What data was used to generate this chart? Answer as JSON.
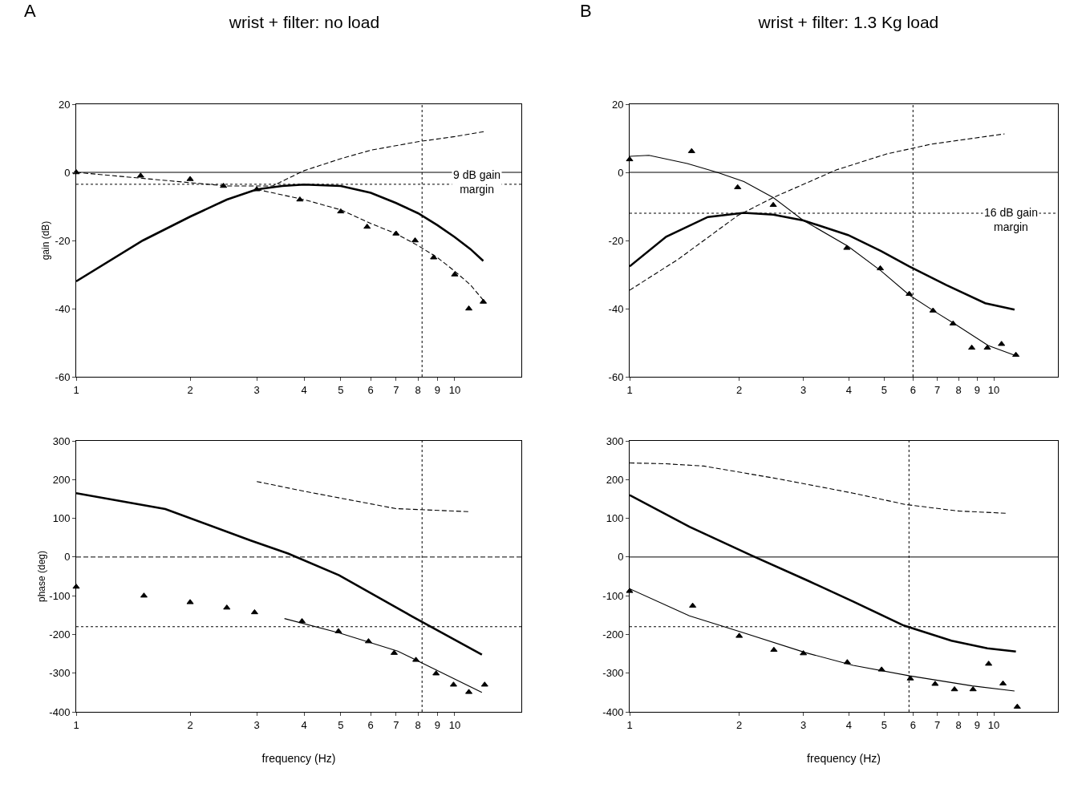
{
  "chart_data": [
    {
      "type": "line",
      "title": "wrist + filter: no load",
      "ylabel": "gain (dB)",
      "log": "x",
      "xlim": [
        1,
        15
      ],
      "xticks": [
        1,
        2,
        3,
        4,
        5,
        6,
        7,
        8,
        9,
        10
      ],
      "ylim": [
        -60,
        20
      ],
      "yticks": [
        -60,
        -40,
        -20,
        0,
        20
      ],
      "grid": false,
      "series": [
        {
          "color": "#000000",
          "line_style": "solid",
          "x": [
            1,
            1.5,
            2,
            2.5,
            3,
            3.5,
            4,
            5,
            6,
            7,
            8,
            9,
            10,
            11,
            11.9
          ],
          "values": [
            -32,
            -20,
            -13,
            -8,
            -5,
            -4,
            -3.6,
            -4,
            -6,
            -9,
            -12,
            -15.5,
            -19,
            -22.5,
            -26
          ]
        },
        {
          "color": "#000000",
          "line_style": "dashed",
          "x": [
            3,
            4,
            5,
            6,
            7,
            8,
            9,
            10,
            11,
            12
          ],
          "values": [
            -5,
            -8,
            -11,
            -15,
            -18,
            -21.5,
            -25,
            -29,
            -33,
            -38
          ]
        },
        {
          "type": "scatter",
          "marker": "triangle",
          "color": "#000000",
          "x": [
            1,
            1.48,
            2,
            2.45,
            3,
            3.9,
            5,
            5.87,
            7,
            7.86,
            8.8,
            10,
            10.9,
            11.9
          ],
          "values": [
            0,
            -1,
            -2,
            -4,
            -5,
            -8,
            -11.5,
            -16,
            -18,
            -20,
            -25,
            -30,
            -40,
            -38
          ]
        },
        {
          "color": "#000000",
          "line_style": "dashed",
          "x": [
            1,
            2.5,
            3.3,
            4,
            5,
            6,
            8,
            10,
            12
          ],
          "values": [
            0,
            -4,
            -4,
            0.5,
            4,
            6.5,
            9,
            10.5,
            12
          ]
        }
      ],
      "ref_lines": [
        {
          "axis": "y",
          "value": 0,
          "color": "#000000",
          "line_style": "solid"
        },
        {
          "axis": "y",
          "value": -3.5,
          "color": "#000000",
          "line_style": "dotted"
        },
        {
          "axis": "x",
          "value": 8.2,
          "color": "#000000",
          "line_style": "dotted"
        }
      ],
      "annotations": [
        "A",
        "9 dB gain margin"
      ]
    },
    {
      "type": "line",
      "title": "wrist + filter: 1.3 Kg load",
      "log": "x",
      "xlim": [
        1,
        15
      ],
      "xticks": [
        1,
        2,
        3,
        4,
        5,
        6,
        7,
        8,
        9,
        10
      ],
      "ylim": [
        -60,
        20
      ],
      "yticks": [
        -60,
        -40,
        -20,
        0,
        20
      ],
      "grid": false,
      "series": [
        {
          "color": "#000000",
          "line_style": "solid",
          "x": [
            1,
            1.26,
            1.64,
            2.06,
            2.48,
            3,
            3.98,
            4.9,
            5.86,
            7.41,
            9.47,
            11.4
          ],
          "values": [
            -27.6,
            -18.9,
            -13.1,
            -11.9,
            -12.4,
            -14.1,
            -18.4,
            -23.1,
            -27.6,
            -33.1,
            -38.4,
            -40.3
          ]
        },
        {
          "color": "#000000",
          "line_style": "solid",
          "x": [
            1,
            1.13,
            1.44,
            1.74,
            2.06,
            2.48,
            3,
            3.98,
            4.9,
            5.86,
            6.87,
            7.84,
            9.65,
            11.5
          ],
          "values": [
            4.7,
            5,
            2.6,
            0,
            -2.7,
            -7.4,
            -14.1,
            -21.7,
            -28.9,
            -36,
            -40.8,
            -44.6,
            -50.8,
            -53.8
          ]
        },
        {
          "type": "scatter",
          "marker": "triangle",
          "color": "#000000",
          "x": [
            1,
            1.48,
            1.98,
            2.48,
            3.95,
            4.88,
            5.86,
            6.81,
            7.73,
            8.7,
            9.6,
            10.5,
            11.5
          ],
          "values": [
            3.8,
            6.2,
            -4.4,
            -9.6,
            -22.2,
            -28.2,
            -35.7,
            -40.6,
            -44.4,
            -51.5,
            -51.5,
            -50.4,
            -53.6
          ]
        },
        {
          "color": "#000000",
          "line_style": "dashed",
          "x": [
            1,
            1.36,
            1.98,
            2.48,
            3.69,
            5.08,
            6.75,
            10.7
          ],
          "values": [
            -34.6,
            -25.5,
            -12.7,
            -7.4,
            0.7,
            5.4,
            8.3,
            11.3
          ]
        }
      ],
      "ref_lines": [
        {
          "axis": "y",
          "value": 0,
          "color": "#000000",
          "line_style": "solid"
        },
        {
          "axis": "y",
          "value": -12,
          "color": "#000000",
          "line_style": "dotted"
        },
        {
          "axis": "x",
          "value": 6,
          "color": "#000000",
          "line_style": "dotted"
        }
      ],
      "annotations": [
        "B",
        "16 dB gain margin"
      ]
    },
    {
      "type": "line",
      "xlabel": "frequency (Hz)",
      "ylabel": "phase (deg)",
      "log": "x",
      "xlim": [
        1,
        15
      ],
      "xticks": [
        1,
        2,
        3,
        4,
        5,
        6,
        7,
        8,
        9,
        10
      ],
      "ylim": [
        -400,
        300
      ],
      "yticks": [
        -400,
        -300,
        -200,
        -100,
        0,
        100,
        200,
        300
      ],
      "grid": false,
      "series": [
        {
          "color": "#000000",
          "line_style": "solid",
          "x": [
            1,
            1.72,
            2.9,
            3.63,
            4.95,
            7.9,
            11.8
          ],
          "values": [
            165,
            124,
            42,
            9,
            -47,
            -159,
            -252
          ]
        },
        {
          "color": "#000000",
          "line_style": "solid",
          "x": [
            3.55,
            4.95,
            7.07,
            11.8
          ],
          "values": [
            -159,
            -196,
            -243,
            -350
          ]
        },
        {
          "type": "scatter",
          "marker": "triangle",
          "color": "#000000",
          "x": [
            1,
            1.51,
            2,
            2.5,
            2.96,
            3.95,
            4.93,
            5.92,
            6.92,
            7.9,
            8.93,
            9.93,
            10.9,
            12
          ],
          "values": [
            -77,
            -100,
            -117,
            -131,
            -143,
            -166,
            -192,
            -218,
            -248,
            -266,
            -301,
            -330,
            -349,
            -330
          ]
        },
        {
          "color": "#000000",
          "line_style": "dashed",
          "x": [
            3,
            4,
            5,
            7,
            11
          ],
          "values": [
            195,
            170,
            152,
            125,
            117
          ]
        }
      ],
      "ref_lines": [
        {
          "axis": "y",
          "value": 0,
          "color": "#000000",
          "line_style": "dashed"
        },
        {
          "axis": "y",
          "value": -180,
          "color": "#000000",
          "line_style": "dotted"
        },
        {
          "axis": "x",
          "value": 8.2,
          "color": "#000000",
          "line_style": "dotted"
        }
      ]
    },
    {
      "type": "line",
      "xlabel": "frequency (Hz)",
      "log": "x",
      "xlim": [
        1,
        15
      ],
      "xticks": [
        1,
        2,
        3,
        4,
        5,
        6,
        7,
        8,
        9,
        10
      ],
      "ylim": [
        -400,
        300
      ],
      "yticks": [
        -400,
        -300,
        -200,
        -100,
        0,
        100,
        200,
        300
      ],
      "grid": false,
      "series": [
        {
          "color": "#000000",
          "line_style": "solid",
          "x": [
            1,
            1.46,
            2.16,
            3.1,
            4.11,
            5.66,
            7.65,
            9.6,
            11.5
          ],
          "values": [
            160,
            78,
            4,
            -62,
            -115,
            -177,
            -216,
            -236,
            -244
          ]
        },
        {
          "color": "#000000",
          "line_style": "solid",
          "x": [
            1,
            1.46,
            2.01,
            3.04,
            4.11,
            5.88,
            8.73,
            11.4
          ],
          "values": [
            -82,
            -152,
            -193,
            -247,
            -280,
            -307,
            -333,
            -346
          ]
        },
        {
          "type": "scatter",
          "marker": "triangle",
          "color": "#000000",
          "x": [
            1,
            1.49,
            2,
            2.49,
            3,
            3.96,
            4.92,
            5.9,
            6.9,
            7.8,
            8.77,
            9.68,
            10.6,
            11.6
          ],
          "values": [
            -88,
            -126,
            -204,
            -240,
            -249,
            -272,
            -291,
            -314,
            -328,
            -342,
            -342,
            -276,
            -327,
            -387
          ]
        },
        {
          "color": "#000000",
          "line_style": "dashed",
          "x": [
            1,
            1.25,
            1.6,
            2.56,
            4.11,
            5.7,
            7.94,
            10.8
          ],
          "values": [
            243,
            241,
            235,
            202,
            165,
            136,
            119,
            113
          ]
        }
      ],
      "ref_lines": [
        {
          "axis": "y",
          "value": 0,
          "color": "#000000",
          "line_style": "solid"
        },
        {
          "axis": "y",
          "value": -180,
          "color": "#000000",
          "line_style": "dotted"
        },
        {
          "axis": "x",
          "value": 5.85,
          "color": "#000000",
          "line_style": "dotted"
        }
      ]
    }
  ]
}
